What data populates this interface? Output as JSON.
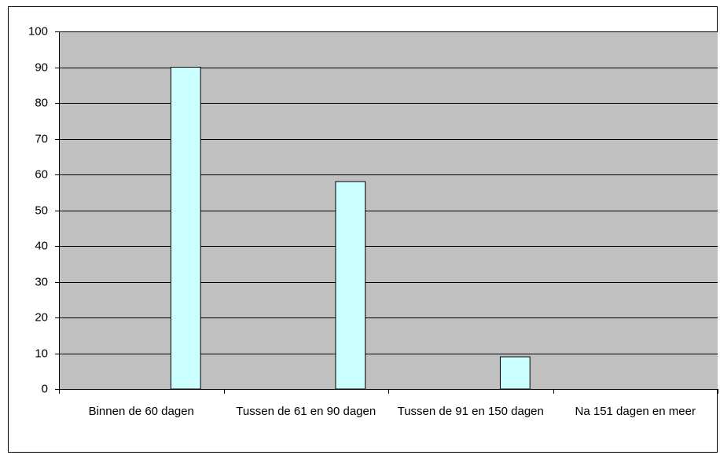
{
  "chart_data": {
    "type": "bar",
    "categories": [
      "Binnen de 60 dagen",
      "Tussen de 61 en 90 dagen",
      "Tussen de 91 en 150 dagen",
      "Na 151 dagen en meer"
    ],
    "values": [
      90,
      58,
      9,
      0
    ],
    "color": "#ccffff",
    "plot_background": "#c0c0c0",
    "ylim": [
      0,
      100
    ],
    "yticks": [
      0,
      10,
      20,
      30,
      40,
      50,
      60,
      70,
      80,
      90,
      100
    ],
    "grid": true
  }
}
